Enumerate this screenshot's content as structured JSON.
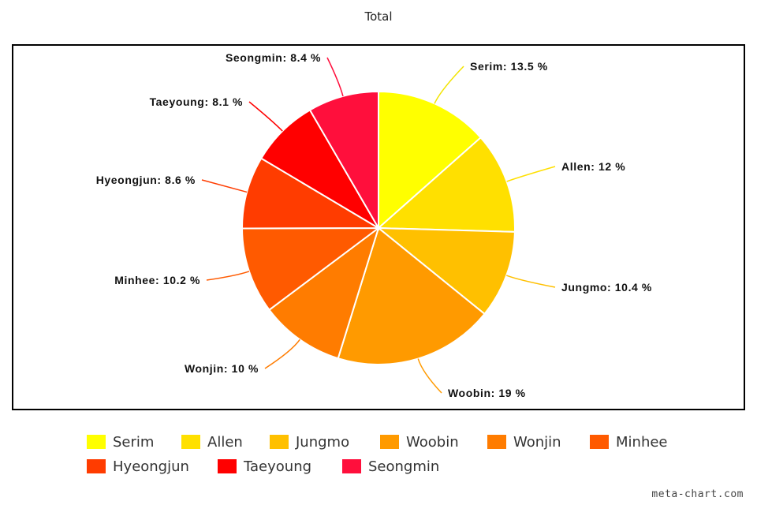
{
  "chart_data": {
    "type": "pie",
    "title": "Total",
    "start_angle_deg": 0,
    "direction": "clockwise",
    "slices": [
      {
        "name": "Serim",
        "value": 13.5,
        "label": "Serim: 13.5 %",
        "color": "#FFFF00"
      },
      {
        "name": "Allen",
        "value": 12,
        "label": "Allen: 12 %",
        "color": "#FFE000"
      },
      {
        "name": "Jungmo",
        "value": 10.4,
        "label": "Jungmo: 10.4 %",
        "color": "#FFC000"
      },
      {
        "name": "Woobin",
        "value": 19,
        "label": "Woobin: 19 %",
        "color": "#FF9A00"
      },
      {
        "name": "Wonjin",
        "value": 10,
        "label": "Wonjin: 10 %",
        "color": "#FF7C00"
      },
      {
        "name": "Minhee",
        "value": 10.2,
        "label": "Minhee: 10.2 %",
        "color": "#FF5A00"
      },
      {
        "name": "Hyeongjun",
        "value": 8.6,
        "label": "Hyeongjun: 8.6 %",
        "color": "#FF3C00"
      },
      {
        "name": "Taeyoung",
        "value": 8.1,
        "label": "Taeyoung: 8.1 %",
        "color": "#FF0000"
      },
      {
        "name": "Seongmin",
        "value": 8.4,
        "label": "Seongmin: 8.4 %",
        "color": "#FF0F3C"
      }
    ],
    "legend_position": "bottom"
  },
  "footer": {
    "credit": "meta-chart.com"
  }
}
